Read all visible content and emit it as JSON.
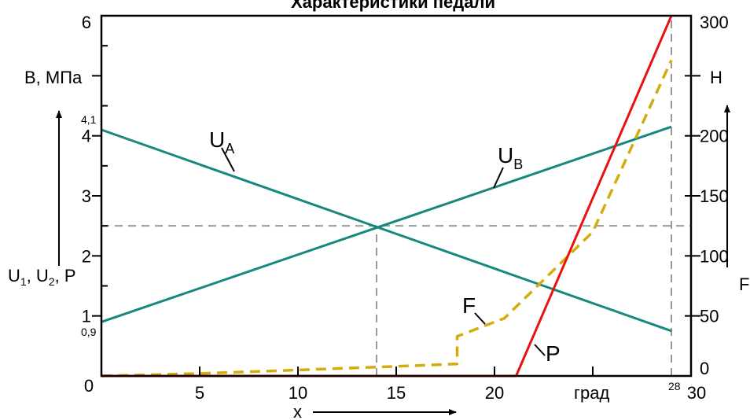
{
  "chart_data": {
    "type": "line",
    "title": "Характеристики педали",
    "x_axis": {
      "range": [
        0,
        30
      ],
      "ticks": [
        "5",
        "10",
        "15",
        "20"
      ],
      "origin_label": "0",
      "end_label": "30",
      "unit": "град",
      "label": "x",
      "marker_28": "28"
    },
    "left_axis": {
      "range": [
        0,
        6
      ],
      "ticks": [
        "1",
        "2",
        "3",
        "4",
        "6"
      ],
      "unit": "В, МПа",
      "label": "U₁, U₂, P",
      "marker_41": "4,1",
      "marker_09": "0,9"
    },
    "right_axis": {
      "range": [
        0,
        300
      ],
      "ticks": [
        "0",
        "50",
        "100",
        "150",
        "200",
        "300"
      ],
      "unit": "Н",
      "label": "F"
    },
    "series": [
      {
        "name": "UA",
        "color": "#17877f",
        "style": "solid",
        "axis": "left",
        "x": [
          0,
          29
        ],
        "y": [
          4.1,
          0.75
        ]
      },
      {
        "name": "UB",
        "color": "#17877f",
        "style": "solid",
        "axis": "left",
        "x": [
          0,
          29
        ],
        "y": [
          0.9,
          4.15
        ]
      },
      {
        "name": "P",
        "color": "#e8130f",
        "style": "solid",
        "axis": "left",
        "x": [
          0,
          21.1,
          29
        ],
        "y": [
          0,
          0,
          6
        ]
      },
      {
        "name": "F",
        "color": "#d4ac0d",
        "style": "dashed",
        "axis": "right",
        "x": [
          0,
          5,
          10,
          15,
          18.1,
          18.1,
          20.5,
          25,
          29
        ],
        "y": [
          0,
          2,
          5,
          8,
          10,
          33,
          48,
          120,
          263
        ]
      }
    ],
    "reference_lines": [
      {
        "orientation": "horizontal",
        "axis": "left",
        "value": 2.5,
        "x_from": 0,
        "x_to": 30
      },
      {
        "orientation": "vertical",
        "value": 14,
        "y_from": 0,
        "y_to": 2.5
      },
      {
        "orientation": "vertical",
        "value": 29,
        "y_from": 0,
        "y_to": 6
      }
    ],
    "annotations": [
      {
        "text": "U",
        "sub": "A",
        "series": "UA"
      },
      {
        "text": "U",
        "sub": "B",
        "series": "UB"
      },
      {
        "text": "F",
        "series": "F"
      },
      {
        "text": "P",
        "series": "P"
      }
    ]
  }
}
